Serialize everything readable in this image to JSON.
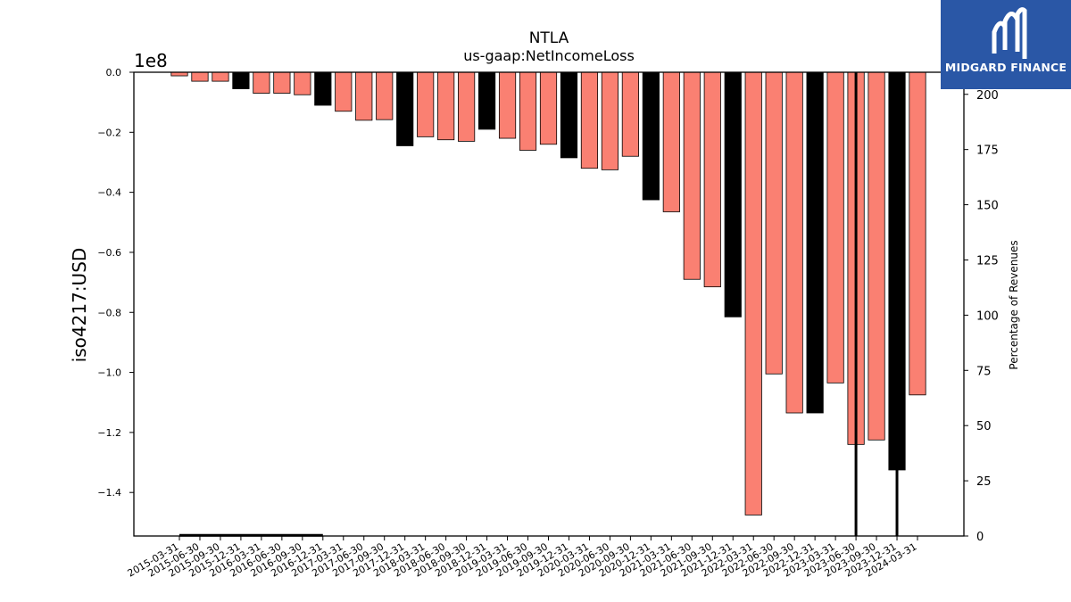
{
  "chart_data": {
    "type": "bar",
    "title": "NTLA",
    "subtitle": "us-gaap:NetIncomeLoss",
    "ylabel": "iso4217:USD",
    "y_scale_label": "1e8",
    "y2label": "Percentage of Revenues",
    "ylim": [
      -1.545,
      0.0
    ],
    "y2lim": [
      0,
      210
    ],
    "yticks": [
      "0.0",
      "−0.2",
      "−0.4",
      "−0.6",
      "−0.8",
      "−1.0",
      "−1.2",
      "−1.4"
    ],
    "y2ticks": [
      "0",
      "25",
      "50",
      "75",
      "100",
      "125",
      "150",
      "175",
      "200"
    ],
    "categories": [
      "2015-03-31",
      "2015-06-30",
      "2015-09-30",
      "2015-12-31",
      "2016-03-31",
      "2016-06-30",
      "2016-09-30",
      "2016-12-31",
      "2017-03-31",
      "2017-06-30",
      "2017-09-30",
      "2017-12-31",
      "2018-03-31",
      "2018-06-30",
      "2018-09-30",
      "2018-12-31",
      "2019-03-31",
      "2019-06-30",
      "2019-09-30",
      "2019-12-31",
      "2020-03-31",
      "2020-06-30",
      "2020-09-30",
      "2020-12-31",
      "2021-03-31",
      "2021-06-30",
      "2021-09-30",
      "2021-12-31",
      "2022-03-31",
      "2022-06-30",
      "2022-09-30",
      "2022-12-31",
      "2023-03-31",
      "2023-06-30",
      "2023-09-30",
      "2023-12-31",
      "2024-03-31"
    ],
    "values": [
      -0.012,
      -0.03,
      -0.03,
      -0.055,
      -0.07,
      -0.07,
      -0.075,
      -0.11,
      -0.13,
      -0.16,
      -0.158,
      -0.245,
      -0.215,
      -0.225,
      -0.23,
      -0.19,
      -0.22,
      -0.26,
      -0.24,
      -0.285,
      -0.32,
      -0.325,
      -0.28,
      -0.425,
      -0.465,
      -0.69,
      -0.715,
      -0.815,
      -1.475,
      -1.005,
      -1.135,
      -1.135,
      -1.035,
      -1.24,
      -1.225,
      -1.325,
      -1.075
    ],
    "annual_flags": [
      false,
      false,
      false,
      true,
      false,
      false,
      false,
      true,
      false,
      false,
      false,
      true,
      false,
      false,
      false,
      true,
      false,
      false,
      false,
      true,
      false,
      false,
      false,
      true,
      false,
      false,
      false,
      true,
      false,
      false,
      false,
      true,
      false,
      false,
      false,
      true,
      false
    ],
    "colors": {
      "quarterly": "#fa8072",
      "annual": "#000000"
    },
    "percent_line": [
      {
        "category": "2015-03-31",
        "value": 0.3
      },
      {
        "category": "2016-12-31",
        "value": 0.3
      }
    ],
    "percent_spikes": [
      {
        "category": "2023-06-30",
        "value": 210
      },
      {
        "category": "2023-12-31",
        "value": 210
      }
    ]
  },
  "logo": {
    "text": "MIDGARD FINANCE",
    "icon": "midgard-logo-icon"
  }
}
